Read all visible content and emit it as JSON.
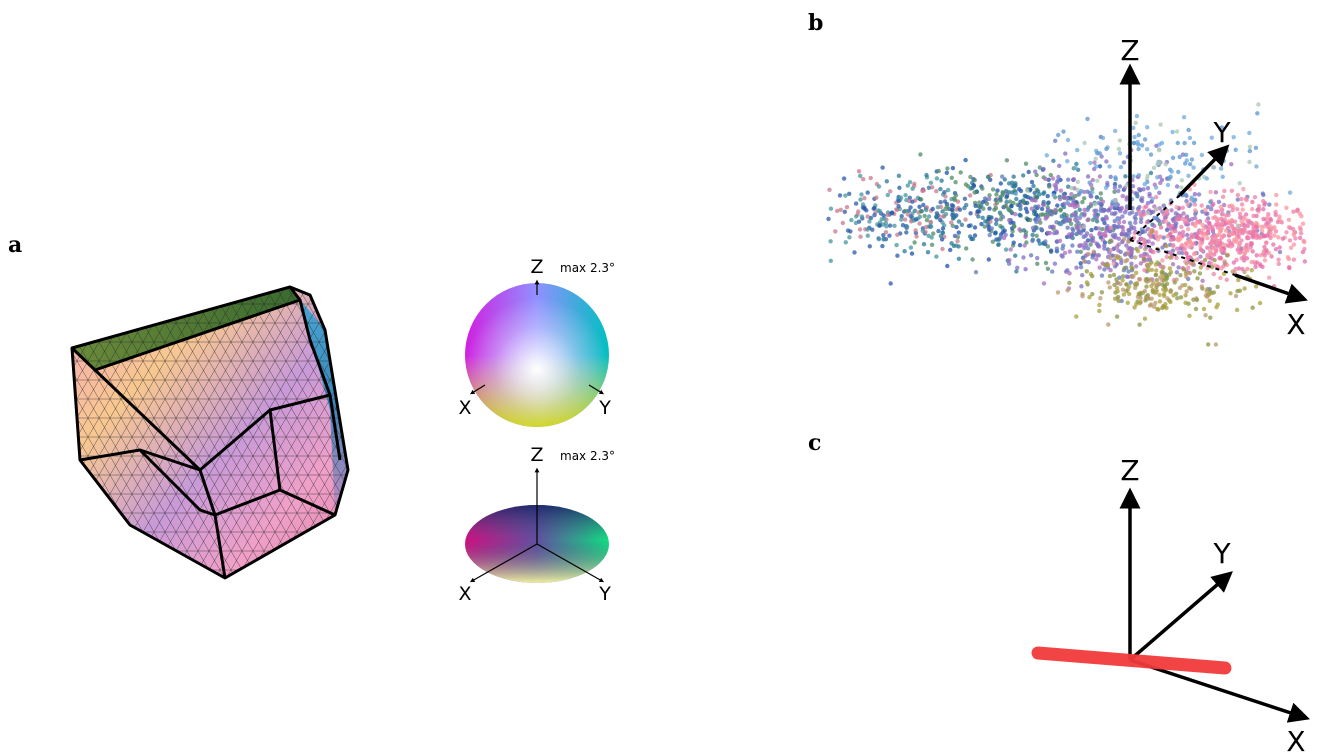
{
  "panels": [
    {
      "label": "a",
      "keys": [
        {
          "z": "Z",
          "x": "X",
          "y": "Y",
          "note": "max 2.3°"
        },
        {
          "z": "Z",
          "x": "X",
          "y": "Y",
          "note": "max 2.3°"
        }
      ]
    },
    {
      "label": "b",
      "axes": {
        "z": "Z",
        "y": "Y",
        "x": "X"
      }
    },
    {
      "label": "c",
      "axes": {
        "z": "Z",
        "y": "Y",
        "x": "X"
      }
    }
  ]
}
